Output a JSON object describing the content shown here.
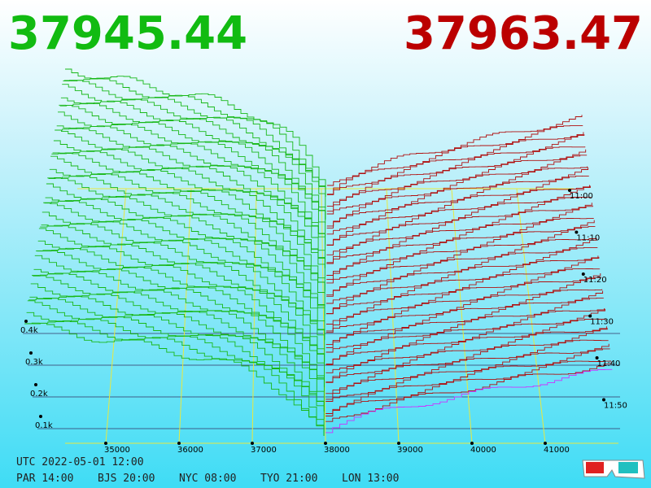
{
  "header": {
    "bid": "37945.44",
    "ask": "37963.47"
  },
  "price_axis": [
    "35000",
    "36000",
    "37000",
    "38000",
    "39000",
    "40000",
    "41000"
  ],
  "depth_axis": [
    "0.4k",
    "0.3k",
    "0.2k",
    "0.1k"
  ],
  "time_axis": [
    "11:00",
    "11:10",
    "11:20",
    "11:30",
    "11:40",
    "11:50"
  ],
  "footer": {
    "utc": "UTC 2022-05-01 12:00",
    "zones": [
      "PAR 14:00",
      "BJS 20:00",
      "NYC 08:00",
      "TYO 21:00",
      "LON 13:00"
    ]
  }
}
